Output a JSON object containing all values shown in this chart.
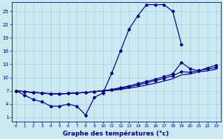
{
  "background_color": "#cce8f0",
  "line_color": "#00008b",
  "grid_color": "#aaccdd",
  "xlabel": "Graphe des températures (°c)",
  "ylim": [
    0,
    27
  ],
  "xlim": [
    -0.5,
    23.5
  ],
  "yticks": [
    1,
    4,
    7,
    10,
    13,
    16,
    19,
    22,
    25
  ],
  "xticks": [
    0,
    1,
    2,
    3,
    4,
    5,
    6,
    7,
    8,
    9,
    10,
    11,
    12,
    13,
    14,
    15,
    16,
    17,
    18,
    19,
    20,
    21,
    22,
    23
  ],
  "main_x": [
    0,
    1,
    2,
    3,
    4,
    5,
    6,
    7,
    8,
    9,
    10,
    11,
    12,
    13,
    14,
    15,
    16,
    17,
    18,
    19
  ],
  "main_y": [
    7,
    6,
    5,
    4.5,
    3.5,
    3.5,
    4,
    3.5,
    1.5,
    5.5,
    6.5,
    11,
    16,
    21,
    24,
    26.5,
    26.5,
    26.5,
    25,
    17.5
  ],
  "line1_x": [
    0,
    1,
    2,
    3,
    4,
    5,
    6,
    7,
    8,
    9,
    10,
    11,
    12,
    13,
    14,
    15,
    16,
    17,
    18,
    19,
    20,
    21,
    22,
    23
  ],
  "line1_y": [
    7.0,
    6.8,
    6.6,
    6.5,
    6.3,
    6.3,
    6.4,
    6.5,
    6.6,
    6.8,
    7.0,
    7.3,
    7.7,
    8.1,
    8.6,
    9.1,
    9.6,
    10.2,
    10.8,
    13.4,
    12.0,
    11.5,
    12.2,
    12.8
  ],
  "line2_x": [
    0,
    1,
    2,
    3,
    4,
    5,
    6,
    7,
    8,
    9,
    10,
    11,
    12,
    13,
    14,
    15,
    16,
    17,
    18,
    19,
    20,
    21,
    22,
    23
  ],
  "line2_y": [
    7.0,
    6.8,
    6.6,
    6.5,
    6.3,
    6.3,
    6.4,
    6.5,
    6.6,
    6.8,
    7.0,
    7.2,
    7.5,
    7.9,
    8.3,
    8.8,
    9.3,
    9.8,
    10.4,
    11.3,
    11.2,
    11.6,
    11.9,
    12.3
  ],
  "line3_x": [
    0,
    1,
    2,
    3,
    4,
    5,
    6,
    7,
    8,
    9,
    10,
    11,
    12,
    13,
    14,
    15,
    16,
    17,
    18,
    19,
    20,
    21,
    22,
    23
  ],
  "line3_y": [
    7.0,
    6.8,
    6.6,
    6.5,
    6.3,
    6.3,
    6.4,
    6.5,
    6.6,
    6.8,
    7.0,
    7.1,
    7.3,
    7.6,
    7.9,
    8.3,
    8.7,
    9.2,
    9.7,
    10.6,
    10.8,
    11.3,
    11.5,
    11.9
  ]
}
